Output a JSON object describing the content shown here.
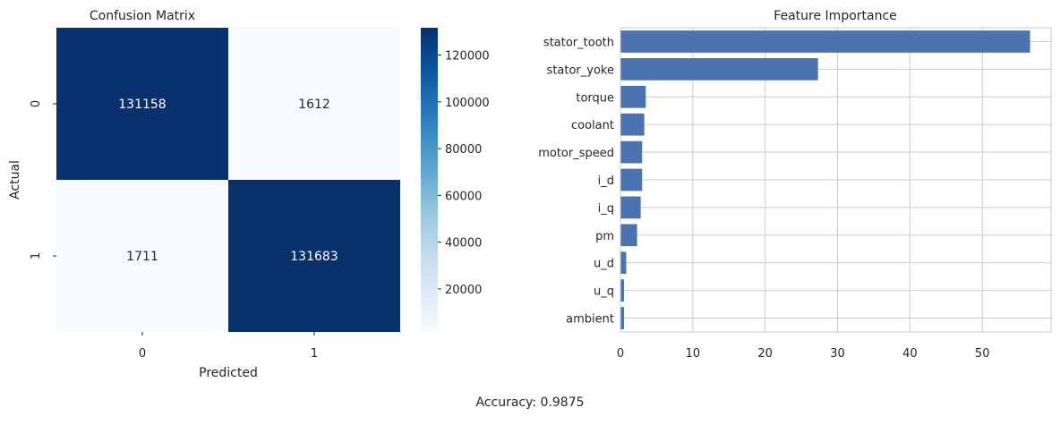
{
  "chart_data": [
    {
      "type": "heatmap",
      "title": "Confusion Matrix",
      "xlabel": "Predicted",
      "ylabel": "Actual",
      "x_categories": [
        "0",
        "1"
      ],
      "y_categories": [
        "0",
        "1"
      ],
      "values": [
        [
          131158,
          1612
        ],
        [
          1711,
          131683
        ]
      ],
      "colormap": "Blues",
      "colorbar_ticks": [
        20000,
        40000,
        60000,
        80000,
        100000,
        120000
      ],
      "colorbar_range": [
        1612,
        131683
      ],
      "colors": {
        "low": "#f7fbff",
        "high": "#08306b"
      }
    },
    {
      "type": "bar",
      "orientation": "horizontal",
      "title": "Feature Importance",
      "xlabel": "",
      "ylabel": "",
      "categories": [
        "stator_tooth",
        "stator_yoke",
        "torque",
        "coolant",
        "motor_speed",
        "i_d",
        "i_q",
        "pm",
        "u_d",
        "u_q",
        "ambient"
      ],
      "values": [
        56.6,
        27.3,
        3.5,
        3.3,
        3.0,
        3.0,
        2.8,
        2.3,
        0.8,
        0.5,
        0.5
      ],
      "xlim": [
        0,
        59.5
      ],
      "xticks": [
        0,
        10,
        20,
        30,
        40,
        50
      ],
      "grid": true,
      "bar_color": "#4c72b0"
    }
  ],
  "footer": {
    "accuracy_text": "Accuracy: 0.9875"
  }
}
